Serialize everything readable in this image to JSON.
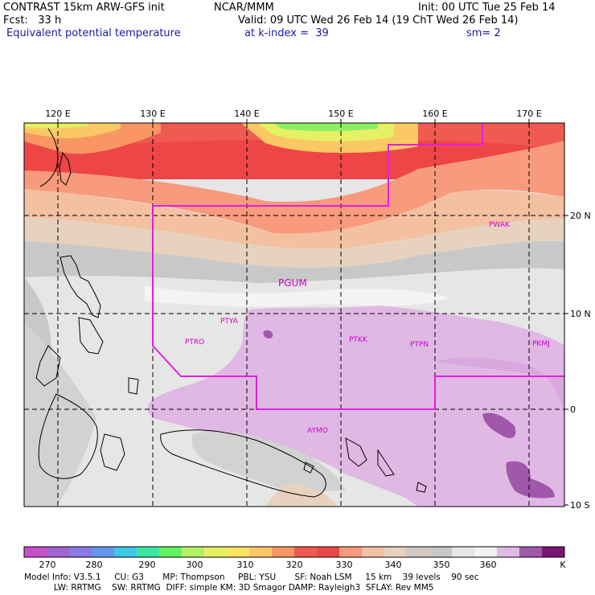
{
  "header": {
    "title_left": "CONTRAST 15km ARW-GFS init",
    "org": "NCAR/MMM",
    "init": "Init: 00 UTC Tue 25 Feb 14",
    "fcst": "Fcst:   33 h",
    "valid": "Valid: 09 UTC Wed 26 Feb 14 (19 ChT Wed 26 Feb 14)",
    "field": "Equivalent potential temperature",
    "level": "at k-index =  39",
    "smooth": "sm= 2"
  },
  "map": {
    "lon_labels": [
      "120 E",
      "130 E",
      "140 E",
      "150 E",
      "160 E",
      "170 E"
    ],
    "lat_labels": [
      "20 N",
      "10 N",
      "0",
      "10 S"
    ],
    "stations": [
      {
        "id": "PWAK"
      },
      {
        "id": "PGUM"
      },
      {
        "id": "PTYA"
      },
      {
        "id": "PTRO"
      },
      {
        "id": "PTKK"
      },
      {
        "id": "PTPN"
      },
      {
        "id": "PKMJ"
      },
      {
        "id": "AYMO"
      }
    ]
  },
  "colorbar": {
    "ticks": [
      "270",
      "280",
      "290",
      "300",
      "310",
      "320",
      "330",
      "340",
      "350",
      "360"
    ],
    "unit": "K",
    "colors": [
      "#c850c8",
      "#a064d2",
      "#8c78e6",
      "#6496f0",
      "#3cc8e6",
      "#3ce6a0",
      "#64f064",
      "#b4f064",
      "#e6f064",
      "#fae664",
      "#fac864",
      "#fa9664",
      "#f05a50",
      "#ee4646",
      "#f89a7c",
      "#f4c0a2",
      "#e6d2be",
      "#d2c8c2",
      "#c8c8c8",
      "#e6e6e6",
      "#f2f2f2",
      "#e0b8e4",
      "#a058aa",
      "#7a1476"
    ]
  },
  "footer": {
    "line1": "Model Info: V3.5.1     CU: G3       MP: Thompson     PBL: YSU       SF: Noah LSM     15 km    39 levels    90 sec",
    "line2": "           LW: RRTMG    SW: RRTMG  DIFF: simple KM: 3D Smagor DAMP: Rayleigh3  SFLAY: Rev MM5"
  }
}
